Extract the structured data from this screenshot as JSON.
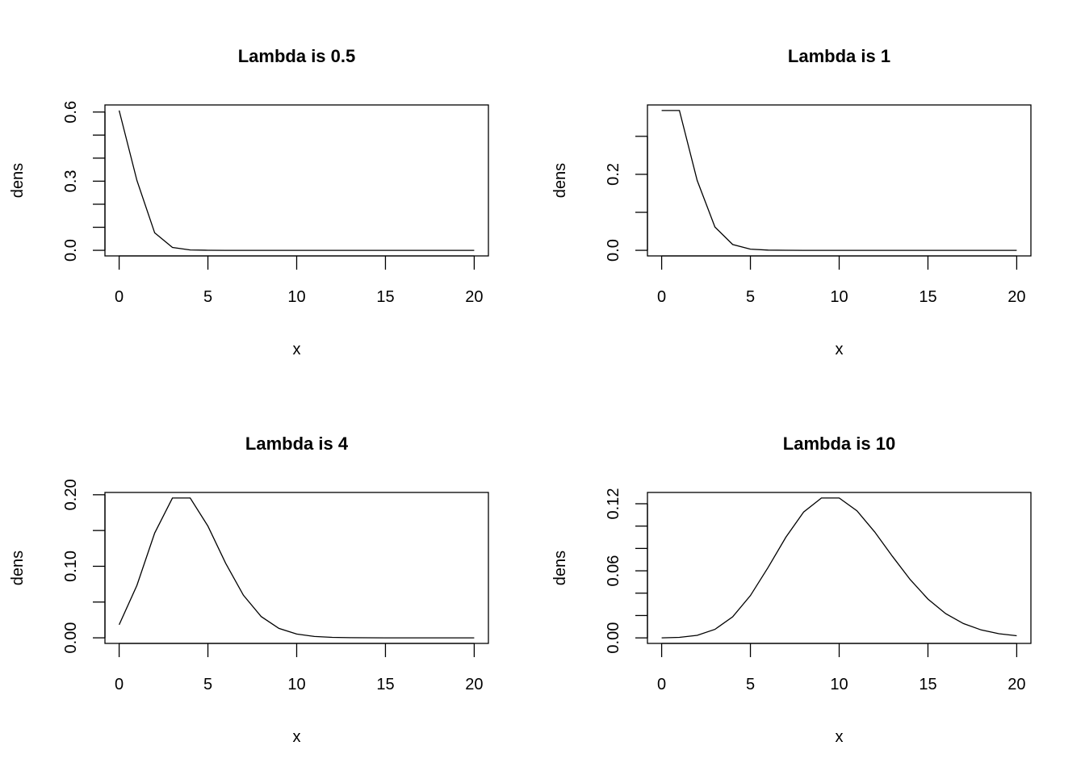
{
  "chart_data": [
    {
      "type": "line",
      "title": "Lambda is 0.5",
      "xlabel": "x",
      "ylabel": "dens",
      "x": [
        0,
        1,
        2,
        3,
        4,
        5,
        6,
        7,
        8,
        9,
        10,
        11,
        12,
        13,
        14,
        15,
        16,
        17,
        18,
        19,
        20
      ],
      "values": [
        0.6065,
        0.3033,
        0.0758,
        0.0126,
        0.0016,
        0.0002,
        0,
        0,
        0,
        0,
        0,
        0,
        0,
        0,
        0,
        0,
        0,
        0,
        0,
        0,
        0
      ],
      "xlim": [
        0,
        20
      ],
      "xticks": [
        0,
        5,
        10,
        15,
        20
      ],
      "xtick_labels": [
        "0",
        "5",
        "10",
        "15",
        "20"
      ],
      "yticks": [
        0,
        0.1,
        0.2,
        0.3,
        0.4,
        0.5,
        0.6
      ],
      "ytick_labels": {
        "0": "0.0",
        "0.3": "0.3",
        "0.6": "0.6"
      },
      "grid": false
    },
    {
      "type": "line",
      "title": "Lambda is 1",
      "xlabel": "x",
      "ylabel": "dens",
      "x": [
        0,
        1,
        2,
        3,
        4,
        5,
        6,
        7,
        8,
        9,
        10,
        11,
        12,
        13,
        14,
        15,
        16,
        17,
        18,
        19,
        20
      ],
      "values": [
        0.3679,
        0.3679,
        0.1839,
        0.0613,
        0.0153,
        0.0031,
        0.0005,
        0.0001,
        0,
        0,
        0,
        0,
        0,
        0,
        0,
        0,
        0,
        0,
        0,
        0,
        0
      ],
      "xlim": [
        0,
        20
      ],
      "xticks": [
        0,
        5,
        10,
        15,
        20
      ],
      "xtick_labels": [
        "0",
        "5",
        "10",
        "15",
        "20"
      ],
      "yticks": [
        0,
        0.1,
        0.2,
        0.3
      ],
      "ytick_labels": {
        "0": "0.0",
        "0.2": "0.2"
      },
      "grid": false
    },
    {
      "type": "line",
      "title": "Lambda is 4",
      "xlabel": "x",
      "ylabel": "dens",
      "x": [
        0,
        1,
        2,
        3,
        4,
        5,
        6,
        7,
        8,
        9,
        10,
        11,
        12,
        13,
        14,
        15,
        16,
        17,
        18,
        19,
        20
      ],
      "values": [
        0.0183,
        0.0733,
        0.1465,
        0.1954,
        0.1954,
        0.1563,
        0.1042,
        0.0595,
        0.0298,
        0.0132,
        0.0053,
        0.0019,
        0.0006,
        0.0002,
        0.0001,
        0,
        0,
        0,
        0,
        0,
        0
      ],
      "xlim": [
        0,
        20
      ],
      "xticks": [
        0,
        5,
        10,
        15,
        20
      ],
      "xtick_labels": [
        "0",
        "5",
        "10",
        "15",
        "20"
      ],
      "yticks": [
        0,
        0.05,
        0.1,
        0.15,
        0.2
      ],
      "ytick_labels": {
        "0": "0.00",
        "0.1": "0.10",
        "0.2": "0.20"
      },
      "grid": false
    },
    {
      "type": "line",
      "title": "Lambda is 10",
      "xlabel": "x",
      "ylabel": "dens",
      "x": [
        0,
        1,
        2,
        3,
        4,
        5,
        6,
        7,
        8,
        9,
        10,
        11,
        12,
        13,
        14,
        15,
        16,
        17,
        18,
        19,
        20
      ],
      "values": [
        5e-05,
        0.0005,
        0.0023,
        0.0076,
        0.0189,
        0.0378,
        0.0631,
        0.0901,
        0.1126,
        0.1251,
        0.1251,
        0.1137,
        0.0948,
        0.0729,
        0.0521,
        0.0347,
        0.0217,
        0.0128,
        0.0071,
        0.0037,
        0.0019
      ],
      "xlim": [
        0,
        20
      ],
      "xticks": [
        0,
        5,
        10,
        15,
        20
      ],
      "xtick_labels": [
        "0",
        "5",
        "10",
        "15",
        "20"
      ],
      "yticks": [
        0,
        0.02,
        0.04,
        0.06,
        0.08,
        0.1,
        0.12
      ],
      "ytick_labels": {
        "0": "0.00",
        "0.06": "0.06",
        "0.12": "0.12"
      },
      "grid": false
    }
  ]
}
